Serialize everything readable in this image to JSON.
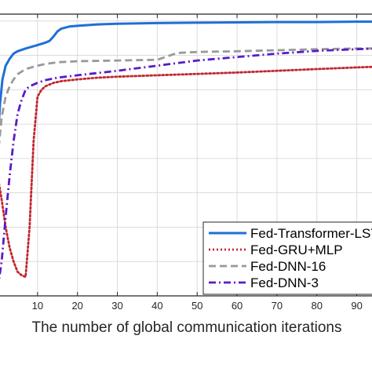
{
  "chart_data": {
    "type": "line",
    "title": "",
    "xlabel": "The number of global communication iterations",
    "ylabel": "",
    "xlim": [
      0,
      95
    ],
    "x_ticks": [
      10,
      20,
      30,
      40,
      50,
      60,
      70,
      80,
      90
    ],
    "x_tick_labels": [
      "10",
      "20",
      "30",
      "40",
      "50",
      "60",
      "70",
      "80",
      "90"
    ],
    "grid": true,
    "legend_position": "bottom-right",
    "series": [
      {
        "name": "Fed-Transformer-LSTM",
        "color": "#1f6fd6",
        "style": "solid",
        "x": [
          0,
          0.6,
          1.2,
          2,
          3,
          4,
          5,
          7,
          10,
          12,
          13,
          14,
          15,
          16,
          18,
          20,
          25,
          30,
          40,
          50,
          60,
          70,
          80,
          90,
          95
        ],
        "y": [
          0.55,
          0.66,
          0.73,
          0.77,
          0.79,
          0.805,
          0.812,
          0.82,
          0.83,
          0.837,
          0.842,
          0.855,
          0.87,
          0.878,
          0.884,
          0.886,
          0.89,
          0.892,
          0.894,
          0.895,
          0.896,
          0.897,
          0.897,
          0.898,
          0.898
        ]
      },
      {
        "name": "Fed-GRU+MLP",
        "color": "#c1272d",
        "style": "dotted",
        "x": [
          0,
          1,
          2,
          3,
          4,
          5,
          6,
          7,
          8,
          9,
          10,
          11,
          12,
          14,
          16,
          20,
          25,
          30,
          40,
          50,
          60,
          70,
          80,
          90,
          95
        ],
        "y": [
          0.45,
          0.38,
          0.3,
          0.24,
          0.2,
          0.17,
          0.16,
          0.155,
          0.3,
          0.55,
          0.68,
          0.7,
          0.71,
          0.72,
          0.725,
          0.73,
          0.735,
          0.738,
          0.742,
          0.746,
          0.75,
          0.755,
          0.76,
          0.765,
          0.767
        ]
      },
      {
        "name": "Fed-DNN-16",
        "color": "#999999",
        "style": "dashed",
        "x": [
          0,
          1,
          2,
          3,
          4,
          5,
          7,
          10,
          12,
          15,
          20,
          30,
          40,
          42,
          45,
          50,
          60,
          70,
          80,
          90,
          95
        ],
        "y": [
          0.5,
          0.62,
          0.68,
          0.71,
          0.73,
          0.745,
          0.76,
          0.77,
          0.775,
          0.78,
          0.783,
          0.785,
          0.787,
          0.795,
          0.807,
          0.81,
          0.812,
          0.815,
          0.818,
          0.82,
          0.82
        ]
      },
      {
        "name": "Fed-DNN-3",
        "color": "#5a1bc8",
        "style": "dashdot",
        "x": [
          0,
          1,
          2,
          3,
          4,
          5,
          6,
          7,
          8,
          10,
          12,
          15,
          20,
          30,
          40,
          50,
          60,
          70,
          80,
          90,
          95
        ],
        "y": [
          0.12,
          0.2,
          0.33,
          0.45,
          0.55,
          0.63,
          0.67,
          0.7,
          0.71,
          0.72,
          0.728,
          0.735,
          0.742,
          0.755,
          0.77,
          0.785,
          0.795,
          0.805,
          0.813,
          0.818,
          0.82
        ]
      }
    ]
  }
}
